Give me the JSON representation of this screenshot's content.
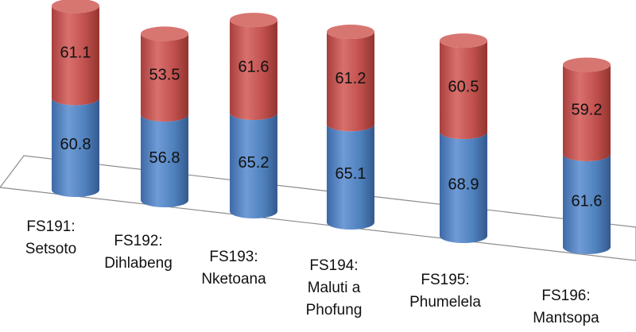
{
  "chart_data": {
    "type": "bar",
    "subtype": "stacked-3d-cylinder",
    "categories": [
      [
        "FS191:",
        "Setsoto"
      ],
      [
        "FS192:",
        "Dihlabeng"
      ],
      [
        "FS193:",
        "Nketoana"
      ],
      [
        "FS194:",
        "Maluti a",
        "Phofung"
      ],
      [
        "FS195:",
        "Phumelela"
      ],
      [
        "FS196:",
        "Mantsopa"
      ]
    ],
    "series": [
      {
        "values": [
          60.8,
          56.8,
          65.2,
          65.1,
          68.9,
          61.6
        ],
        "color": "#4f81bd"
      },
      {
        "values": [
          61.1,
          53.5,
          61.6,
          61.2,
          60.5,
          59.2
        ],
        "color": "#c0504d"
      }
    ],
    "value_labels": {
      "bottom": [
        "60.8",
        "56.8",
        "65.2",
        "65.1",
        "68.9",
        "61.6"
      ],
      "top": [
        "61.1",
        "53.5",
        "61.6",
        "61.2",
        "60.5",
        "59.2"
      ]
    },
    "title": "",
    "xlabel": "",
    "ylabel": "",
    "grid": false,
    "legend": "none"
  }
}
